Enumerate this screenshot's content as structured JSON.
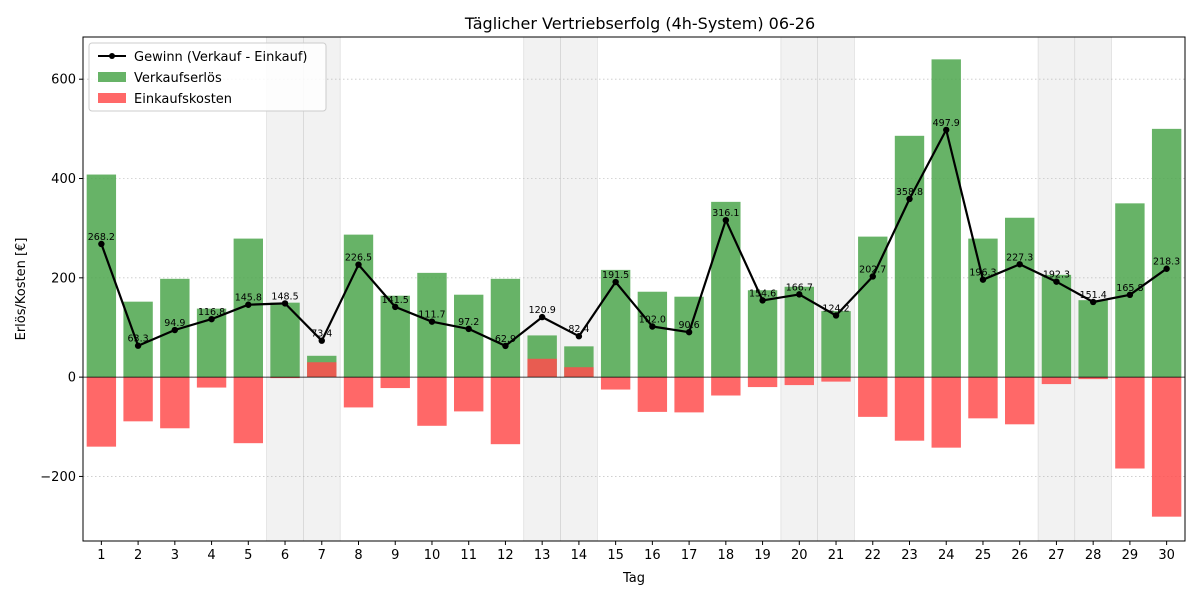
{
  "chart_data": {
    "type": "bar",
    "title": "Täglicher Vertriebserfolg (4h-System) 06-26",
    "xlabel": "Tag",
    "ylabel": "Erlös/Kosten [€]",
    "ylim": [
      -330,
      685
    ],
    "yticks": [
      -200,
      0,
      200,
      400,
      600
    ],
    "grid": "horizontal dotted",
    "legend_position": "top-left",
    "categories": [
      "1",
      "2",
      "3",
      "4",
      "5",
      "6",
      "7",
      "8",
      "9",
      "10",
      "11",
      "12",
      "13",
      "14",
      "15",
      "16",
      "17",
      "18",
      "19",
      "20",
      "21",
      "22",
      "23",
      "24",
      "25",
      "26",
      "27",
      "28",
      "29",
      "30"
    ],
    "weekend_days": [
      6,
      7,
      13,
      14,
      20,
      21,
      27,
      28
    ],
    "colors": {
      "revenue": "#4ca64c",
      "cost": "#ff4d4d",
      "profit": "#000000",
      "weekend": "#d9d9d9"
    },
    "series": [
      {
        "name": "Gewinn (Verkauf - Einkauf)",
        "kind": "line",
        "values": [
          268.2,
          63.3,
          94.9,
          116.8,
          145.8,
          148.5,
          73.4,
          226.5,
          141.5,
          111.7,
          97.2,
          62.9,
          120.9,
          82.4,
          191.5,
          102.0,
          90.6,
          316.1,
          154.6,
          166.7,
          124.2,
          202.7,
          358.8,
          497.9,
          196.3,
          227.3,
          192.3,
          151.4,
          165.8,
          218.3
        ],
        "labels": [
          "268.2",
          "63.3",
          "94.9",
          "116.8",
          "145.8",
          "148.5",
          "73.4",
          "226.5",
          "141.5",
          "111.7",
          "97.2",
          "62.9",
          "120.9",
          "82.4",
          "191.5",
          "102.0",
          "90.6",
          "316.1",
          "154.6",
          "166.7",
          "124.2",
          "202.7",
          "358.8",
          "497.9",
          "196.3",
          "227.3",
          "192.3",
          "151.4",
          "165.8",
          "218.3"
        ]
      },
      {
        "name": "Verkaufserlös",
        "kind": "bar",
        "values": [
          408,
          152,
          198,
          138,
          279,
          150,
          43,
          287,
          164,
          210,
          166,
          198,
          84,
          62,
          216,
          172,
          162,
          353,
          175,
          182,
          133,
          283,
          486,
          640,
          279,
          321,
          206,
          155,
          350,
          500
        ]
      },
      {
        "name": "Einkaufskosten",
        "kind": "bar",
        "values": [
          -140,
          -89,
          -103,
          -21,
          -133,
          -2,
          30,
          -61,
          -22,
          -98,
          -69,
          -135,
          37,
          20,
          -25,
          -70,
          -71,
          -37,
          -20,
          -16,
          -9,
          -80,
          -128,
          -142,
          -83,
          -95,
          -14,
          -4,
          -184,
          -281
        ]
      }
    ]
  }
}
